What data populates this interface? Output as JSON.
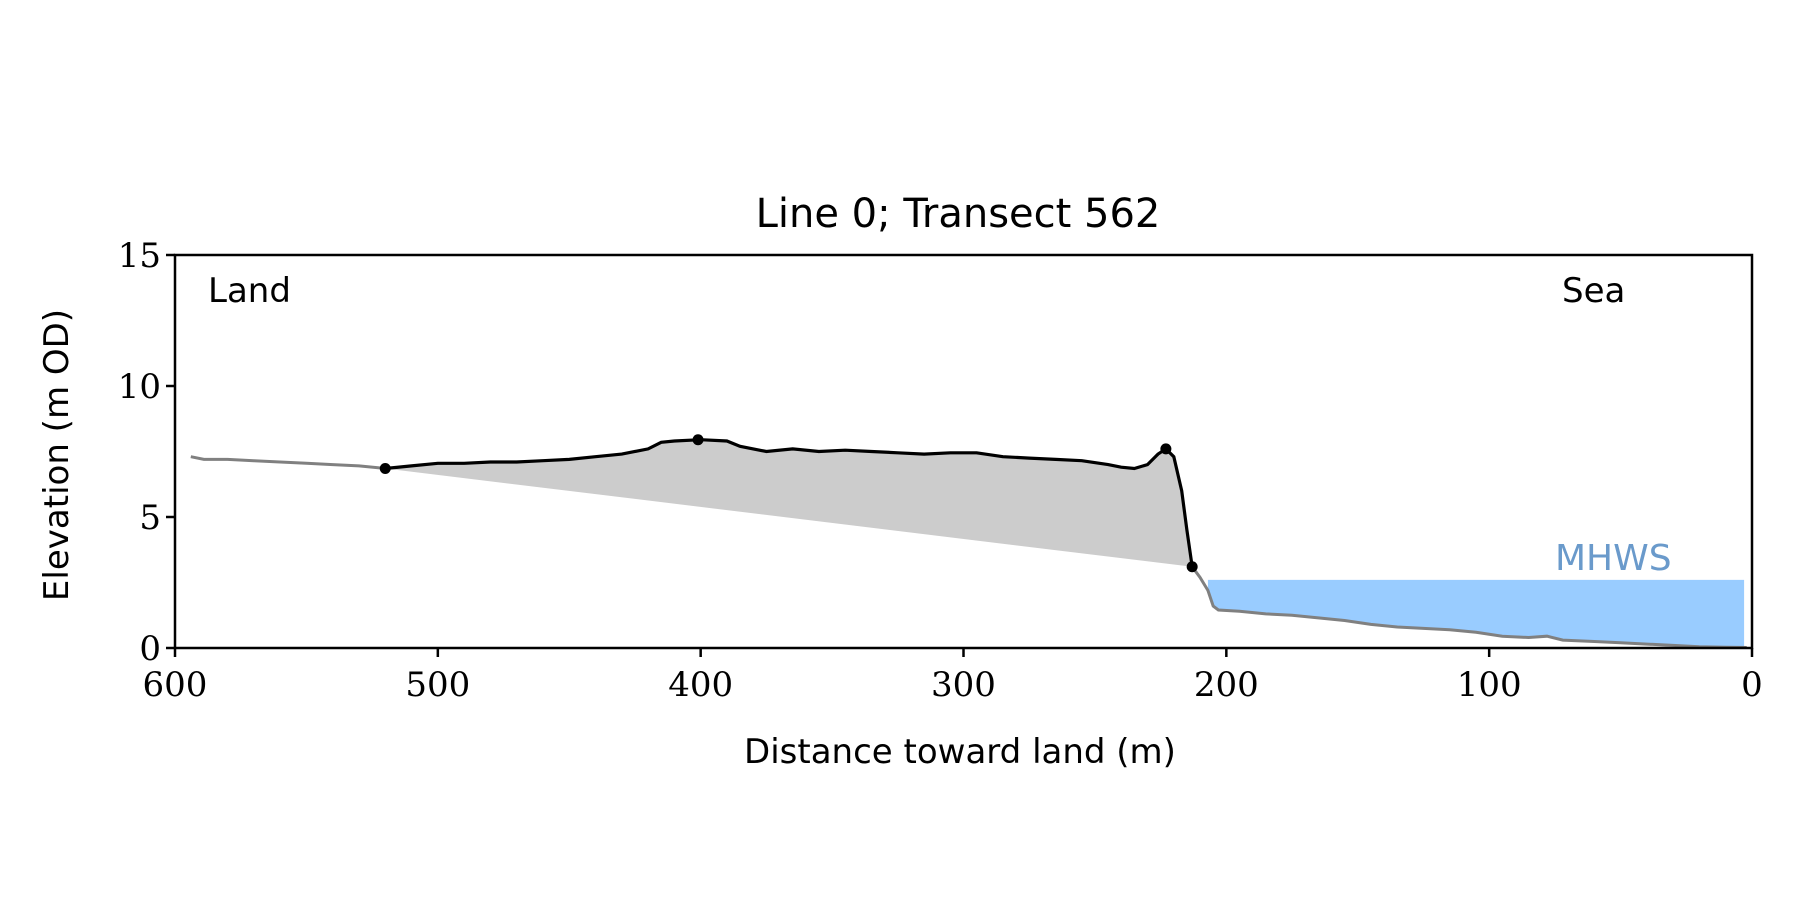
{
  "chart_data": {
    "type": "area",
    "title": "Line 0; Transect 562",
    "xlabel": "Distance toward land (m)",
    "ylabel": "Elevation (m OD)",
    "xlim": [
      600,
      0
    ],
    "ylim": [
      0,
      15
    ],
    "x_ticks": [
      600,
      500,
      400,
      300,
      200,
      100,
      0
    ],
    "y_ticks": [
      0,
      5,
      10,
      15
    ],
    "x_tick_labels": [
      "600",
      "500",
      "400",
      "300",
      "200",
      "100",
      "0"
    ],
    "y_tick_labels": [
      "0",
      "5",
      "10",
      "15"
    ],
    "annotations": {
      "left_corner": "Land",
      "right_corner": "Sea",
      "water_label": "MHWS"
    },
    "mhws": {
      "elevation": 2.6,
      "x_from": 207,
      "x_to": 3
    },
    "colors": {
      "profile_outer": "#808080",
      "profile_selected": "#000000",
      "fill_area": "#cccccc",
      "water": "#99ccff",
      "water_label": "#6a9acb"
    },
    "profile_outer_left": [
      [
        594,
        7.3
      ],
      [
        589,
        7.2
      ],
      [
        580,
        7.2
      ],
      [
        570,
        7.15
      ],
      [
        560,
        7.1
      ],
      [
        550,
        7.05
      ],
      [
        540,
        7.0
      ],
      [
        530,
        6.95
      ],
      [
        520,
        6.85
      ]
    ],
    "profile_selected": [
      [
        520,
        6.85
      ],
      [
        510,
        6.95
      ],
      [
        500,
        7.05
      ],
      [
        490,
        7.05
      ],
      [
        480,
        7.1
      ],
      [
        470,
        7.1
      ],
      [
        460,
        7.15
      ],
      [
        450,
        7.2
      ],
      [
        440,
        7.3
      ],
      [
        430,
        7.4
      ],
      [
        420,
        7.6
      ],
      [
        415,
        7.85
      ],
      [
        410,
        7.9
      ],
      [
        400,
        7.95
      ],
      [
        390,
        7.9
      ],
      [
        385,
        7.7
      ],
      [
        375,
        7.5
      ],
      [
        365,
        7.6
      ],
      [
        355,
        7.5
      ],
      [
        345,
        7.55
      ],
      [
        335,
        7.5
      ],
      [
        325,
        7.45
      ],
      [
        315,
        7.4
      ],
      [
        305,
        7.45
      ],
      [
        295,
        7.45
      ],
      [
        285,
        7.3
      ],
      [
        275,
        7.25
      ],
      [
        265,
        7.2
      ],
      [
        255,
        7.15
      ],
      [
        245,
        7.0
      ],
      [
        240,
        6.9
      ],
      [
        235,
        6.85
      ],
      [
        230,
        7.0
      ],
      [
        226,
        7.4
      ],
      [
        223,
        7.6
      ],
      [
        220,
        7.3
      ],
      [
        217,
        6.0
      ],
      [
        215,
        4.5
      ],
      [
        213,
        3.1
      ]
    ],
    "profile_outer_right": [
      [
        213,
        3.1
      ],
      [
        210,
        2.7
      ],
      [
        207,
        2.2
      ],
      [
        205,
        1.6
      ],
      [
        203,
        1.45
      ],
      [
        195,
        1.4
      ],
      [
        185,
        1.3
      ],
      [
        175,
        1.25
      ],
      [
        165,
        1.15
      ],
      [
        155,
        1.05
      ],
      [
        145,
        0.9
      ],
      [
        135,
        0.8
      ],
      [
        125,
        0.75
      ],
      [
        115,
        0.7
      ],
      [
        105,
        0.6
      ],
      [
        95,
        0.45
      ],
      [
        85,
        0.4
      ],
      [
        78,
        0.45
      ],
      [
        72,
        0.3
      ],
      [
        60,
        0.25
      ],
      [
        50,
        0.2
      ],
      [
        40,
        0.15
      ],
      [
        30,
        0.1
      ],
      [
        20,
        0.05
      ],
      [
        10,
        0.03
      ],
      [
        2,
        0.02
      ]
    ],
    "key_points": [
      [
        520,
        6.85
      ],
      [
        401,
        7.95
      ],
      [
        223,
        7.6
      ],
      [
        213,
        3.1
      ]
    ]
  }
}
